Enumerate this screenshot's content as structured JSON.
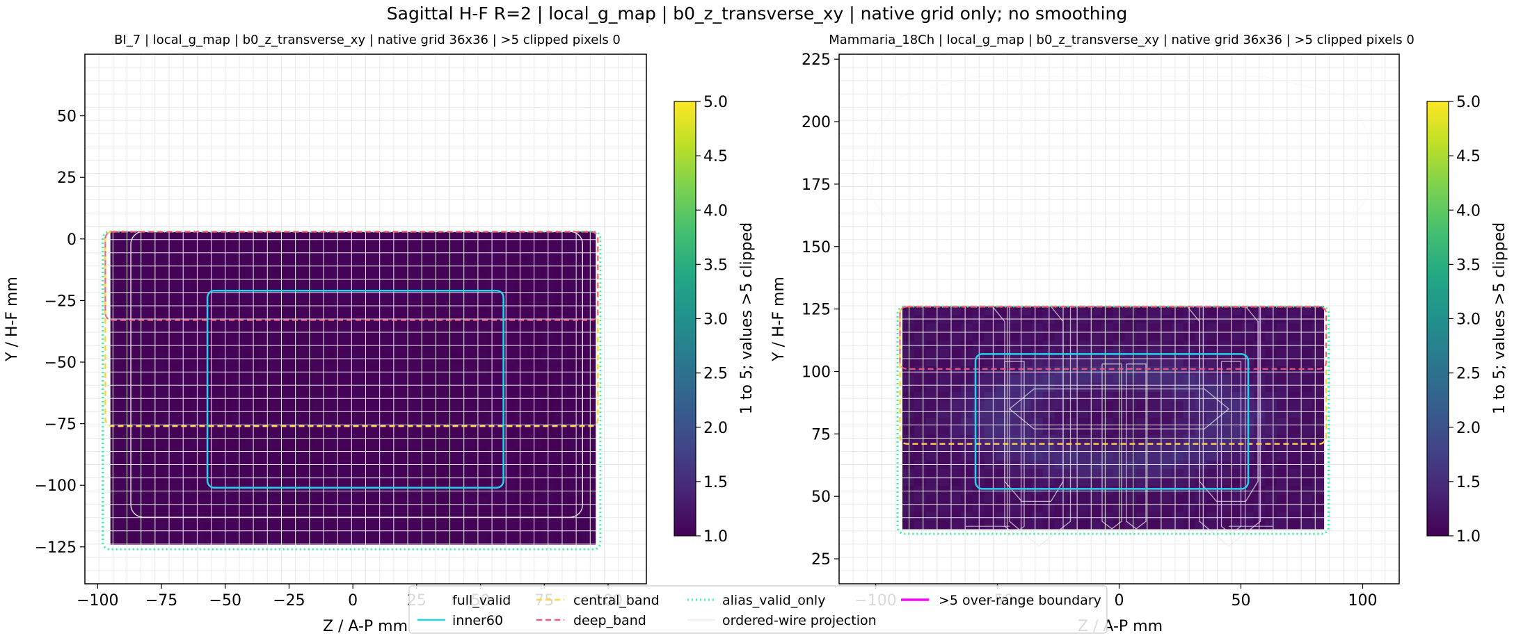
{
  "suptitle": "Sagittal H-F R=2 | local_g_map | b0_z_transverse_xy | native grid only; no smoothing",
  "legend": {
    "items": [
      {
        "label": "full_valid",
        "color": "#ffffff",
        "style": "solid"
      },
      {
        "label": "inner60",
        "color": "#22d3ee",
        "style": "solid"
      },
      {
        "label": "central_band",
        "color": "#fcd34d",
        "style": "dashed"
      },
      {
        "label": "deep_band",
        "color": "#f05a7e",
        "style": "dashed"
      },
      {
        "label": "alias_valid_only",
        "color": "#34f5a0",
        "style": "dotted"
      },
      {
        "label": "ordered-wire projection",
        "color": "#f2f2f2",
        "style": "solid"
      },
      {
        "label": ">5 over-range boundary",
        "color": "#ff00ff",
        "style": "solid"
      }
    ]
  },
  "chart_data": [
    {
      "type": "heatmap",
      "title": "BI_7 | local_g_map | b0_z_transverse_xy | native grid 36x36 | >5 clipped pixels 0",
      "xlabel": "Z / A-P mm",
      "ylabel": "Y / H-F mm",
      "xlim": [
        -105,
        115
      ],
      "ylim": [
        -140,
        75
      ],
      "xticks": [
        -100,
        -75,
        -50,
        -25,
        0,
        25,
        50,
        75,
        100
      ],
      "xtick_labels": [
        "−100",
        "−75",
        "−50",
        "−25",
        "0",
        "25",
        "50",
        "75",
        "100"
      ],
      "yticks": [
        50,
        25,
        0,
        -25,
        -50,
        -75,
        -100,
        -125
      ],
      "ytick_labels": [
        "50",
        "25",
        "0",
        "−25",
        "−50",
        "−75",
        "−100",
        "−125"
      ],
      "grid": true,
      "colorbar": {
        "label": "1 to 5; values >5 clipped",
        "min": 1.0,
        "max": 5.0,
        "ticks": [
          "1.0",
          "1.5",
          "2.0",
          "2.5",
          "3.0",
          "3.5",
          "4.0",
          "4.5",
          "5.0"
        ]
      },
      "data_extent": {
        "x": [
          -95,
          95
        ],
        "y": [
          -124,
          3
        ]
      },
      "cell_value_range": [
        1.0,
        1.08
      ],
      "contours": {
        "full_valid": {
          "x": [
            -87,
            90
          ],
          "y": [
            -113,
            3
          ]
        },
        "inner60": {
          "x": [
            -57,
            59
          ],
          "y": [
            -101,
            -21
          ]
        },
        "central_band": {
          "y_bottom": -76
        },
        "deep_band": {
          "y": -33
        },
        "alias_valid_only": {
          "x": [
            -98,
            97
          ],
          "y": [
            -126,
            3
          ]
        }
      },
      "clipped_pixels": 0
    },
    {
      "type": "heatmap",
      "title": "Mammaria_18Ch | local_g_map | b0_z_transverse_xy | native grid 36x36 | >5 clipped pixels 0",
      "xlabel": "Z / A-P mm",
      "ylabel": "Y / H-F mm",
      "xlim": [
        -115,
        115
      ],
      "ylim": [
        15,
        227
      ],
      "xticks": [
        -100,
        -50,
        0,
        50,
        100
      ],
      "xtick_labels": [
        "−100",
        "−50",
        "0",
        "50",
        "100"
      ],
      "yticks": [
        225,
        200,
        175,
        150,
        125,
        100,
        75,
        50,
        25
      ],
      "ytick_labels": [
        "225",
        "200",
        "175",
        "150",
        "125",
        "100",
        "75",
        "50",
        "25"
      ],
      "grid": true,
      "colorbar": {
        "label": "1 to 5; values >5 clipped",
        "min": 1.0,
        "max": 5.0,
        "ticks": [
          "1.0",
          "1.5",
          "2.0",
          "2.5",
          "3.0",
          "3.5",
          "4.0",
          "4.5",
          "5.0"
        ]
      },
      "data_extent": {
        "x": [
          -89,
          84
        ],
        "y": [
          37,
          126
        ]
      },
      "cell_value_range": [
        1.05,
        1.55
      ],
      "contours": {
        "inner60": {
          "x": [
            -59,
            53
          ],
          "y": [
            53,
            107
          ]
        },
        "central_band": {
          "y_bottom": 71
        },
        "deep_band": {
          "y": 101
        },
        "alias_valid_only": {
          "x": [
            -91,
            86
          ],
          "y": [
            35,
            126
          ]
        }
      },
      "clipped_pixels": 0
    }
  ]
}
